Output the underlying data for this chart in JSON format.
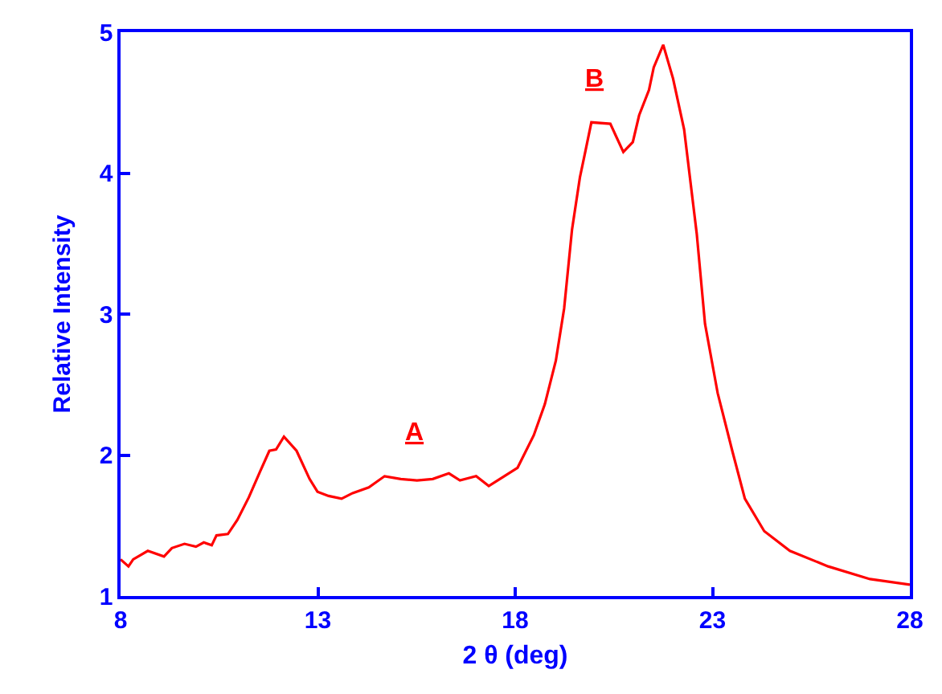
{
  "chart_data": {
    "type": "line",
    "xlabel": "2 θ (deg)",
    "ylabel": "Relative Intensity",
    "xlim": [
      8,
      28
    ],
    "xticks": [
      8,
      13,
      18,
      23,
      28
    ],
    "ylim": [
      1,
      5
    ],
    "yticks": [
      1,
      2,
      3,
      4,
      5
    ],
    "marker": "none",
    "line_style": "solid",
    "annotations": [
      "A",
      "B"
    ],
    "series": [
      {
        "color": "#ff0000",
        "x": [
          8.0,
          8.2,
          8.32,
          8.69,
          9.1,
          9.3,
          9.62,
          9.91,
          10.11,
          10.31,
          10.43,
          10.72,
          10.96,
          11.25,
          11.53,
          11.77,
          11.94,
          12.14,
          12.46,
          12.79,
          12.99,
          13.27,
          13.6,
          13.88,
          14.29,
          14.69,
          15.1,
          15.51,
          15.91,
          16.32,
          16.6,
          17.01,
          17.33,
          17.61,
          18.06,
          18.47,
          18.75,
          19.03,
          19.24,
          19.44,
          19.64,
          19.76,
          19.93,
          20.41,
          20.74,
          20.98,
          21.14,
          21.39,
          21.51,
          21.75,
          22.0,
          22.28,
          22.6,
          22.81,
          23.13,
          23.5,
          23.82,
          24.31,
          24.96,
          25.93,
          26.99,
          28.0
        ],
        "values": [
          1.26,
          1.21,
          1.26,
          1.32,
          1.28,
          1.34,
          1.37,
          1.35,
          1.38,
          1.36,
          1.43,
          1.44,
          1.54,
          1.7,
          1.88,
          2.03,
          2.04,
          2.13,
          2.03,
          1.83,
          1.74,
          1.71,
          1.69,
          1.73,
          1.77,
          1.85,
          1.83,
          1.82,
          1.83,
          1.87,
          1.82,
          1.85,
          1.78,
          1.83,
          1.91,
          2.14,
          2.36,
          2.67,
          3.04,
          3.6,
          3.97,
          4.13,
          4.36,
          4.35,
          4.15,
          4.22,
          4.41,
          4.59,
          4.75,
          4.91,
          4.67,
          4.31,
          3.57,
          2.93,
          2.44,
          2.03,
          1.69,
          1.46,
          1.32,
          1.21,
          1.12,
          1.08
        ]
      }
    ]
  }
}
